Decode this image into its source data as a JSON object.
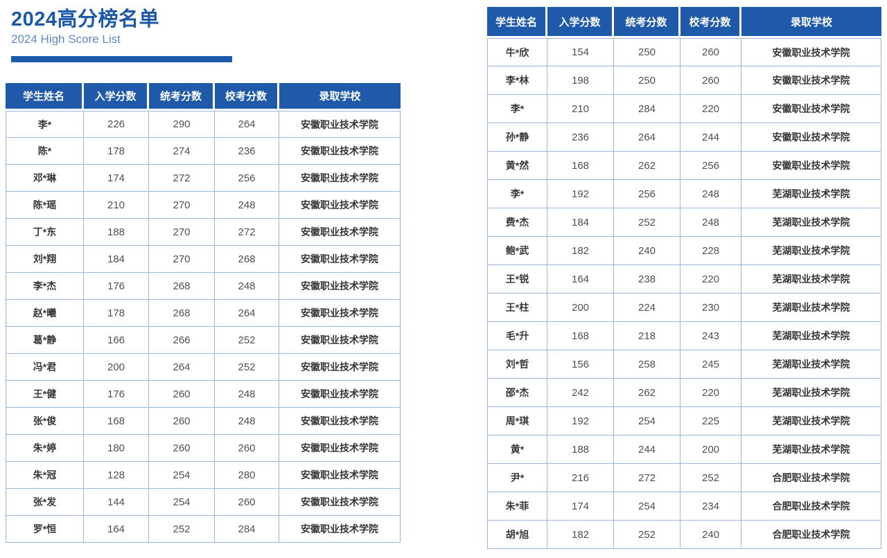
{
  "header": {
    "title": "2024高分榜名单",
    "subtitle": "2024 High Score List"
  },
  "table_columns": [
    "学生姓名",
    "入学分数",
    "统考分数",
    "校考分数",
    "录取学校"
  ],
  "tables": [
    {
      "position": "left",
      "rows": [
        [
          "李*",
          "226",
          "290",
          "264",
          "安徽职业技术学院"
        ],
        [
          "陈*",
          "178",
          "274",
          "236",
          "安徽职业技术学院"
        ],
        [
          "邓*琳",
          "174",
          "272",
          "256",
          "安徽职业技术学院"
        ],
        [
          "陈*瑶",
          "210",
          "270",
          "248",
          "安徽职业技术学院"
        ],
        [
          "丁*东",
          "188",
          "270",
          "272",
          "安徽职业技术学院"
        ],
        [
          "刘*翔",
          "184",
          "270",
          "268",
          "安徽职业技术学院"
        ],
        [
          "李*杰",
          "176",
          "268",
          "248",
          "安徽职业技术学院"
        ],
        [
          "赵*曦",
          "178",
          "268",
          "264",
          "安徽职业技术学院"
        ],
        [
          "葛*静",
          "166",
          "266",
          "252",
          "安徽职业技术学院"
        ],
        [
          "冯*君",
          "200",
          "264",
          "252",
          "安徽职业技术学院"
        ],
        [
          "王*健",
          "176",
          "260",
          "248",
          "安徽职业技术学院"
        ],
        [
          "张*俊",
          "168",
          "260",
          "248",
          "安徽职业技术学院"
        ],
        [
          "朱*婷",
          "180",
          "260",
          "260",
          "安徽职业技术学院"
        ],
        [
          "朱*冠",
          "128",
          "254",
          "280",
          "安徽职业技术学院"
        ],
        [
          "张*发",
          "144",
          "254",
          "260",
          "安徽职业技术学院"
        ],
        [
          "罗*恒",
          "164",
          "252",
          "284",
          "安徽职业技术学院"
        ]
      ]
    },
    {
      "position": "right",
      "rows": [
        [
          "牛*欣",
          "154",
          "250",
          "260",
          "安徽职业技术学院"
        ],
        [
          "李*林",
          "198",
          "250",
          "260",
          "安徽职业技术学院"
        ],
        [
          "李*",
          "210",
          "284",
          "220",
          "安徽职业技术学院"
        ],
        [
          "孙*静",
          "236",
          "264",
          "244",
          "安徽职业技术学院"
        ],
        [
          "黄*然",
          "168",
          "262",
          "256",
          "安徽职业技术学院"
        ],
        [
          "李*",
          "192",
          "256",
          "248",
          "芜湖职业技术学院"
        ],
        [
          "费*杰",
          "184",
          "252",
          "248",
          "芜湖职业技术学院"
        ],
        [
          "鲍*武",
          "182",
          "240",
          "228",
          "芜湖职业技术学院"
        ],
        [
          "王*锐",
          "164",
          "238",
          "220",
          "芜湖职业技术学院"
        ],
        [
          "王*柱",
          "200",
          "224",
          "230",
          "芜湖职业技术学院"
        ],
        [
          "毛*升",
          "168",
          "218",
          "243",
          "芜湖职业技术学院"
        ],
        [
          "刘*哲",
          "156",
          "258",
          "245",
          "芜湖职业技术学院"
        ],
        [
          "邵*杰",
          "242",
          "262",
          "220",
          "芜湖职业技术学院"
        ],
        [
          "周*琪",
          "192",
          "254",
          "225",
          "芜湖职业技术学院"
        ],
        [
          "黄*",
          "188",
          "244",
          "200",
          "芜湖职业技术学院"
        ],
        [
          "尹*",
          "216",
          "272",
          "252",
          "合肥职业技术学院"
        ],
        [
          "朱*菲",
          "174",
          "254",
          "234",
          "合肥职业技术学院"
        ],
        [
          "胡*旭",
          "182",
          "252",
          "240",
          "合肥职业技术学院"
        ]
      ]
    }
  ],
  "colors": {
    "accent_blue": "#1e5aa9",
    "title_blue": "#1c57a8",
    "subtitle_blue": "#6089c6",
    "border_blue": "#9cb4e0",
    "body_text": "#4f4f4f",
    "bold_text": "#363636"
  }
}
